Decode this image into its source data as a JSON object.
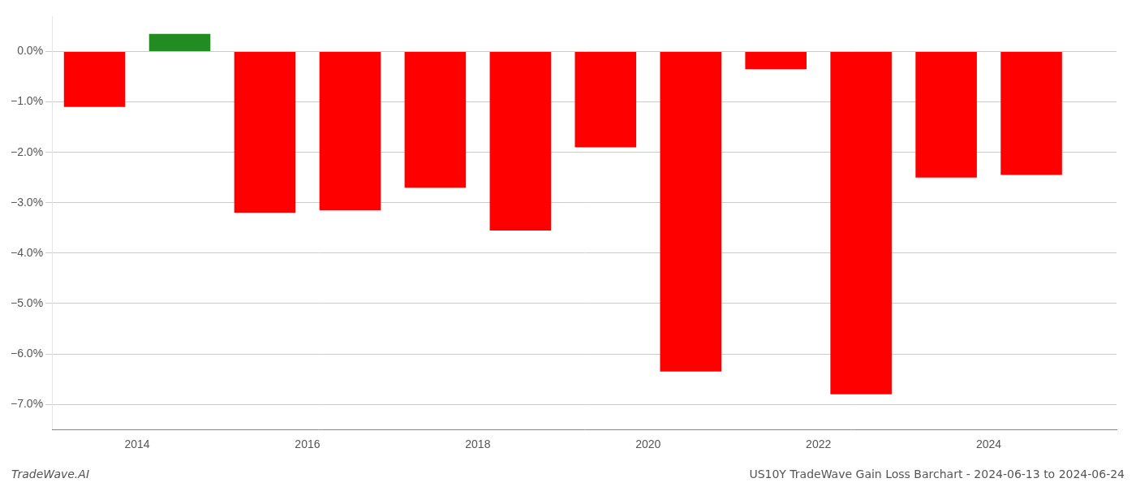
{
  "chart_data": {
    "type": "bar",
    "title": "US10Y TradeWave Gain Loss Barchart - 2024-06-13 to 2024-06-24",
    "annotations": [
      "TradeWave.AI"
    ],
    "x": [
      2013.5,
      2014.5,
      2015.5,
      2016.5,
      2017.5,
      2018.5,
      2019.5,
      2020.5,
      2021.5,
      2022.5,
      2023.5,
      2024.5
    ],
    "values": [
      -1.1,
      0.35,
      -3.2,
      -3.15,
      -2.7,
      -3.55,
      -1.9,
      -6.35,
      -0.35,
      -6.8,
      -2.5,
      -2.45
    ],
    "colors": [
      "#ff0000",
      "#228B22",
      "#ff0000",
      "#ff0000",
      "#ff0000",
      "#ff0000",
      "#ff0000",
      "#ff0000",
      "#ff0000",
      "#ff0000",
      "#ff0000",
      "#ff0000"
    ],
    "xlim": [
      2013.0,
      2025.5
    ],
    "xticks": [
      2014,
      2016,
      2018,
      2020,
      2022,
      2024
    ],
    "ylim": [
      -7.5,
      0.7
    ],
    "yticks": [
      {
        "value": 0.0,
        "label": "0.0%"
      },
      {
        "value": -1.0,
        "label": "−1.0%"
      },
      {
        "value": -2.0,
        "label": "−2.0%"
      },
      {
        "value": -3.0,
        "label": "−3.0%"
      },
      {
        "value": -4.0,
        "label": "−4.0%"
      },
      {
        "value": -5.0,
        "label": "−5.0%"
      },
      {
        "value": -6.0,
        "label": "−6.0%"
      },
      {
        "value": -7.0,
        "label": "−7.0%"
      }
    ],
    "grid": "y"
  }
}
